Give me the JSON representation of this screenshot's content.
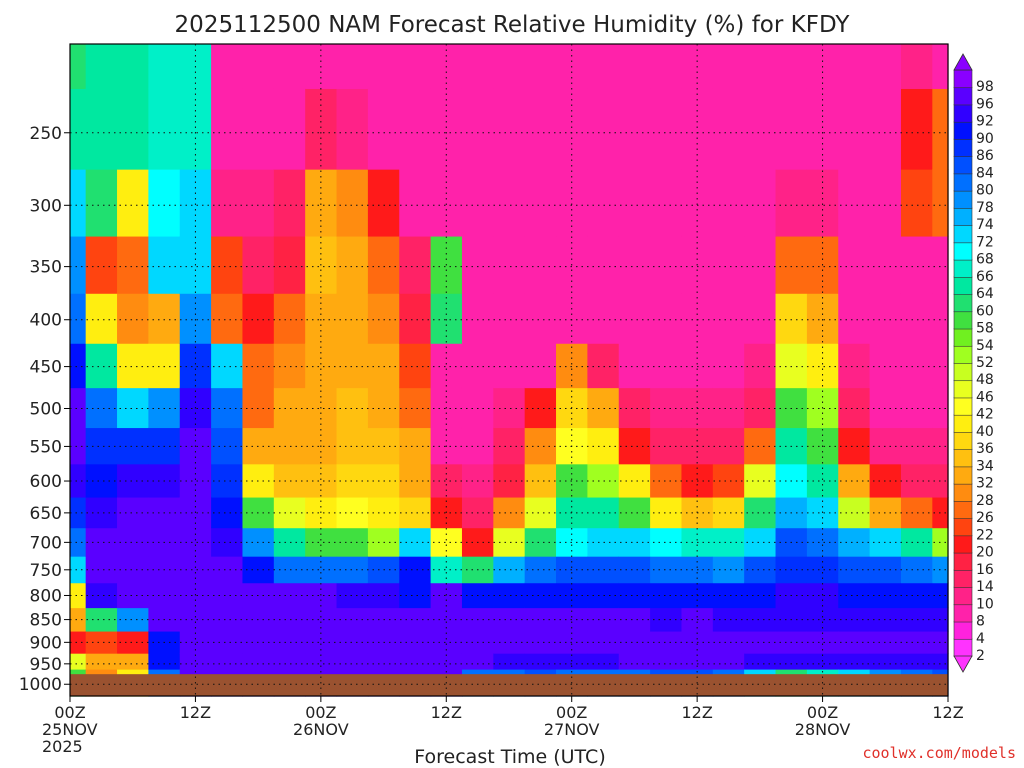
{
  "chart_data": {
    "type": "heatmap",
    "title": "2025112500 NAM Forecast Relative Humidity (%) for KFDY",
    "xlabel": "Forecast Time (UTC)",
    "ylabel": "",
    "y_scale": "log",
    "ylim": [
      1030,
      200
    ],
    "y_ticks": [
      "250",
      "300",
      "350",
      "400",
      "450",
      "500",
      "550",
      "600",
      "650",
      "700",
      "750",
      "800",
      "850",
      "900",
      "950",
      "1000"
    ],
    "x_ticks": [
      {
        "hour": 0,
        "line1": "00Z",
        "line2": "25NOV",
        "line3": "2025"
      },
      {
        "hour": 12,
        "line1": "12Z",
        "line2": "",
        "line3": ""
      },
      {
        "hour": 24,
        "line1": "00Z",
        "line2": "26NOV",
        "line3": ""
      },
      {
        "hour": 36,
        "line1": "12Z",
        "line2": "",
        "line3": ""
      },
      {
        "hour": 48,
        "line1": "00Z",
        "line2": "27NOV",
        "line3": ""
      },
      {
        "hour": 60,
        "line1": "12Z",
        "line2": "",
        "line3": ""
      },
      {
        "hour": 72,
        "line1": "00Z",
        "line2": "28NOV",
        "line3": ""
      },
      {
        "hour": 84,
        "line1": "12Z",
        "line2": "",
        "line3": ""
      }
    ],
    "xlim": [
      0,
      84
    ],
    "grid": true,
    "colorbar_levels": [
      2,
      4,
      8,
      10,
      14,
      16,
      20,
      22,
      26,
      28,
      32,
      34,
      36,
      40,
      42,
      46,
      48,
      52,
      54,
      58,
      60,
      64,
      66,
      68,
      72,
      74,
      78,
      80,
      84,
      86,
      90,
      92,
      96,
      98
    ],
    "colorbar_colors": [
      "#ff33ff",
      "#ff22dd",
      "#ff22aa",
      "#ff2288",
      "#ff2266",
      "#ff2244",
      "#ff1a1a",
      "#ff4410",
      "#ff6a10",
      "#ff8c10",
      "#ffaa10",
      "#ffc010",
      "#ffd810",
      "#ffee10",
      "#ffff20",
      "#e8ff20",
      "#c8ff20",
      "#a0ff20",
      "#70f020",
      "#40e040",
      "#20e070",
      "#00e8a0",
      "#00f0c8",
      "#00ffff",
      "#00d8ff",
      "#00b0ff",
      "#0090ff",
      "#0070ff",
      "#0050ff",
      "#0030ff",
      "#0010ff",
      "#3000ff",
      "#5a00ff",
      "#8a00ff"
    ],
    "ground_color": "#9a5230",
    "ground_level_hpa": 975,
    "rh_field": {
      "hours": [
        0,
        3,
        6,
        9,
        12,
        15,
        18,
        21,
        24,
        27,
        30,
        33,
        36,
        39,
        42,
        45,
        48,
        51,
        54,
        57,
        60,
        63,
        66,
        69,
        72,
        75,
        78,
        81,
        84
      ],
      "pressures": [
        975,
        950,
        900,
        850,
        800,
        750,
        700,
        650,
        600,
        550,
        500,
        450,
        400,
        350,
        300,
        250,
        200
      ],
      "rows_by_hour": [
        [
          55,
          45,
          20,
          30,
          40,
          70,
          80,
          85,
          92,
          94,
          95,
          90,
          80,
          75,
          70,
          62,
          60
        ],
        [
          28,
          30,
          22,
          60,
          92,
          94,
          95,
          92,
          90,
          85,
          80,
          62,
          40,
          22,
          60,
          62,
          62
        ],
        [
          40,
          30,
          20,
          75,
          95,
          96,
          96,
          94,
          92,
          85,
          70,
          40,
          28,
          24,
          40,
          62,
          62
        ],
        [
          80,
          90,
          90,
          95,
          96,
          96,
          96,
          94,
          92,
          86,
          75,
          40,
          30,
          70,
          68,
          66,
          66
        ],
        [
          94,
          96,
          96,
          96,
          96,
          96,
          96,
          94,
          94,
          95,
          92,
          86,
          75,
          72,
          70,
          66,
          66
        ],
        [
          94,
          96,
          96,
          96,
          96,
          94,
          92,
          90,
          85,
          82,
          80,
          70,
          25,
          22,
          10,
          8,
          6
        ],
        [
          94,
          96,
          96,
          96,
          96,
          90,
          75,
          55,
          40,
          30,
          26,
          24,
          20,
          14,
          10,
          8,
          6
        ],
        [
          96,
          96,
          96,
          96,
          94,
          80,
          62,
          45,
          34,
          30,
          30,
          28,
          25,
          16,
          12,
          8,
          6
        ],
        [
          96,
          96,
          96,
          96,
          94,
          80,
          55,
          40,
          34,
          32,
          32,
          30,
          32,
          34,
          30,
          12,
          6
        ],
        [
          96,
          96,
          96,
          96,
          92,
          80,
          55,
          42,
          36,
          34,
          34,
          32,
          32,
          30,
          28,
          10,
          6
        ],
        [
          96,
          96,
          96,
          96,
          92,
          84,
          50,
          40,
          36,
          34,
          32,
          30,
          28,
          26,
          20,
          8,
          6
        ],
        [
          96,
          96,
          96,
          96,
          90,
          88,
          70,
          35,
          32,
          30,
          26,
          22,
          16,
          12,
          8,
          6,
          6
        ],
        [
          94,
          96,
          96,
          96,
          94,
          66,
          42,
          20,
          12,
          8,
          8,
          8,
          60,
          55,
          8,
          6,
          6
        ],
        [
          80,
          94,
          94,
          94,
          90,
          60,
          20,
          12,
          10,
          8,
          8,
          8,
          8,
          6,
          6,
          6,
          6
        ],
        [
          80,
          92,
          94,
          94,
          90,
          74,
          45,
          28,
          16,
          12,
          10,
          8,
          8,
          6,
          6,
          6,
          6
        ],
        [
          82,
          92,
          94,
          94,
          88,
          80,
          60,
          44,
          34,
          28,
          20,
          8,
          8,
          6,
          6,
          6,
          6
        ],
        [
          80,
          92,
          94,
          94,
          88,
          82,
          68,
          62,
          55,
          42,
          36,
          28,
          8,
          6,
          6,
          6,
          6
        ],
        [
          80,
          92,
          94,
          94,
          88,
          82,
          70,
          62,
          50,
          38,
          30,
          12,
          8,
          6,
          6,
          6,
          6
        ],
        [
          80,
          94,
          94,
          94,
          88,
          82,
          70,
          58,
          40,
          20,
          12,
          8,
          8,
          6,
          6,
          6,
          6
        ],
        [
          82,
          94,
          94,
          92,
          88,
          80,
          68,
          40,
          26,
          14,
          10,
          8,
          8,
          6,
          6,
          6,
          6
        ],
        [
          82,
          94,
          94,
          94,
          88,
          80,
          66,
          34,
          20,
          12,
          10,
          8,
          8,
          6,
          6,
          6,
          6
        ],
        [
          80,
          94,
          94,
          92,
          88,
          78,
          66,
          36,
          22,
          12,
          10,
          8,
          8,
          6,
          6,
          6,
          6
        ],
        [
          70,
          92,
          94,
          92,
          88,
          82,
          72,
          60,
          44,
          26,
          14,
          10,
          8,
          6,
          6,
          6,
          6
        ],
        [
          60,
          92,
          94,
          92,
          92,
          86,
          82,
          74,
          68,
          62,
          56,
          46,
          36,
          26,
          10,
          6,
          6
        ],
        [
          66,
          92,
          94,
          92,
          92,
          86,
          80,
          70,
          62,
          55,
          52,
          40,
          30,
          26,
          10,
          6,
          6
        ],
        [
          72,
          92,
          94,
          92,
          90,
          84,
          74,
          48,
          30,
          20,
          14,
          10,
          8,
          6,
          6,
          6,
          6
        ],
        [
          76,
          92,
          94,
          92,
          90,
          82,
          70,
          30,
          18,
          10,
          8,
          8,
          6,
          6,
          6,
          6,
          6
        ],
        [
          80,
          92,
          94,
          92,
          88,
          80,
          62,
          26,
          14,
          10,
          8,
          8,
          8,
          8,
          22,
          20,
          10
        ],
        [
          82,
          92,
          94,
          92,
          88,
          76,
          50,
          20,
          12,
          10,
          8,
          8,
          8,
          8,
          24,
          24,
          8
        ]
      ]
    }
  },
  "footer": {
    "credit": "coolwx.com/models"
  }
}
